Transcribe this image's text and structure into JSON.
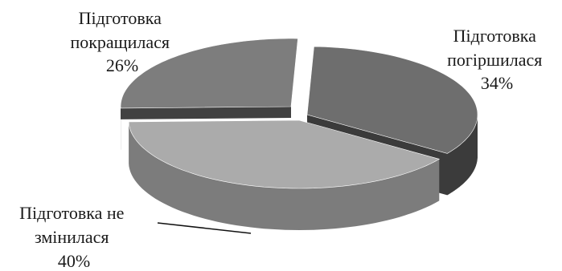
{
  "chart_data": {
    "type": "pie",
    "style": "3d-exploded",
    "title": "",
    "slices": [
      {
        "line1": "Підготовка",
        "line2": "погіршилася",
        "value_label": "34%",
        "value": 34,
        "color": "#6e6e6e",
        "side_color": "#3b3b3b"
      },
      {
        "line1": "Підготовка не",
        "line2": "змінилася",
        "value_label": "40%",
        "value": 40,
        "color": "#ababab",
        "side_color": "#7c7c7c"
      },
      {
        "line1": "Підготовка",
        "line2": "покращилася",
        "value_label": "26%",
        "value": 26,
        "color": "#7d7d7d",
        "side_color": "#414141"
      }
    ]
  }
}
